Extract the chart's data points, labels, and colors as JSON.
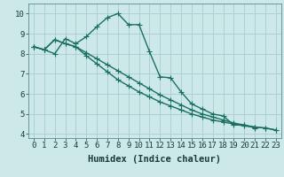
{
  "xlabel": "Humidex (Indice chaleur)",
  "background_color": "#cce8e8",
  "grid_color": "#aacccc",
  "line_color": "#1a7060",
  "x_ticks": [
    0,
    1,
    2,
    3,
    4,
    5,
    6,
    7,
    8,
    9,
    10,
    11,
    12,
    13,
    14,
    15,
    16,
    17,
    18,
    19,
    20,
    21,
    22,
    23
  ],
  "ylim": [
    3.8,
    10.5
  ],
  "xlim": [
    -0.5,
    23.5
  ],
  "series1_x": [
    0,
    1,
    2,
    3,
    4,
    5,
    6,
    7,
    8,
    9,
    10,
    11,
    12,
    13,
    14,
    15,
    16,
    17,
    18,
    19,
    20,
    21
  ],
  "series1_y": [
    8.35,
    8.2,
    8.0,
    8.75,
    8.5,
    8.85,
    9.35,
    9.8,
    10.0,
    9.45,
    9.45,
    8.1,
    6.85,
    6.8,
    6.1,
    5.5,
    5.25,
    5.0,
    4.9,
    4.45,
    4.45,
    4.3
  ],
  "series2_x": [
    0,
    1,
    2,
    3,
    4,
    5,
    6,
    7,
    8,
    9,
    10,
    11,
    12,
    13,
    14,
    15,
    16,
    17,
    18,
    19,
    20,
    21,
    22,
    23
  ],
  "series2_y": [
    8.35,
    8.2,
    8.7,
    8.5,
    8.35,
    8.05,
    7.75,
    7.45,
    7.15,
    6.85,
    6.55,
    6.25,
    5.95,
    5.7,
    5.45,
    5.2,
    5.0,
    4.85,
    4.7,
    4.55,
    4.45,
    4.35,
    4.3,
    4.2
  ],
  "series3_x": [
    0,
    1,
    2,
    3,
    4,
    5,
    6,
    7,
    8,
    9,
    10,
    11,
    12,
    13,
    14,
    15,
    16,
    17,
    18,
    19,
    20,
    21,
    22,
    23
  ],
  "series3_y": [
    8.35,
    8.2,
    8.7,
    8.5,
    8.35,
    7.9,
    7.5,
    7.1,
    6.7,
    6.4,
    6.1,
    5.85,
    5.6,
    5.4,
    5.2,
    5.0,
    4.85,
    4.7,
    4.6,
    4.5,
    4.4,
    4.35,
    4.3,
    4.2
  ],
  "y_ticks": [
    4,
    5,
    6,
    7,
    8,
    9,
    10
  ],
  "markersize": 2.5,
  "linewidth": 1.0,
  "xlabel_fontsize": 7.5,
  "tick_fontsize": 6.5
}
